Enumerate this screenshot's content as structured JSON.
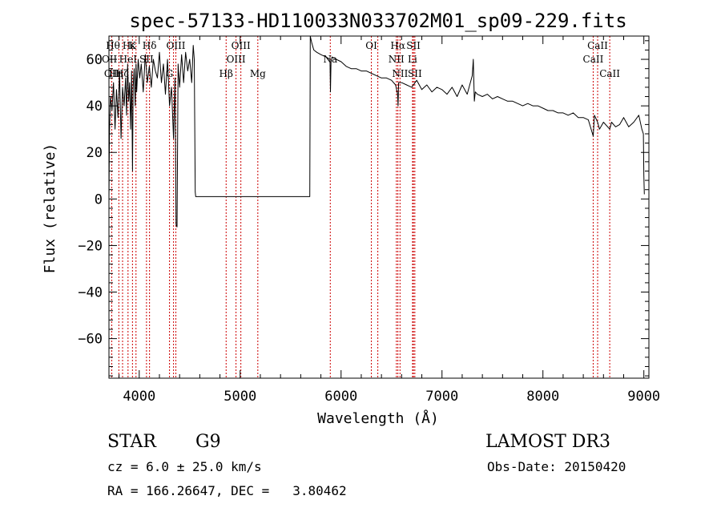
{
  "chart_data": {
    "type": "line",
    "title": "spec-57133-HD110033N033702M01_sp09-229.fits",
    "xlabel": "Wavelength (Å)",
    "ylabel": "Flux (relative)",
    "xlim": [
      3700,
      9050
    ],
    "ylim": [
      -77,
      70
    ],
    "x_ticks": [
      {
        "value": 4000,
        "label": "4000"
      },
      {
        "value": 5000,
        "label": "5000"
      },
      {
        "value": 6000,
        "label": "6000"
      },
      {
        "value": 7000,
        "label": "7000"
      },
      {
        "value": 8000,
        "label": "8000"
      },
      {
        "value": 9000,
        "label": "9000"
      }
    ],
    "y_ticks": [
      {
        "value": 60,
        "label": "60"
      },
      {
        "value": 40,
        "label": "40"
      },
      {
        "value": 20,
        "label": "20"
      },
      {
        "value": 0,
        "label": "0"
      },
      {
        "value": -20,
        "label": "−20"
      },
      {
        "value": -40,
        "label": "−40"
      },
      {
        "value": -60,
        "label": "−60"
      }
    ],
    "x_minor_step": 200,
    "y_minor_step": 4,
    "series": [
      {
        "name": "flux",
        "x": [
          3700,
          3705,
          3715,
          3730,
          3745,
          3760,
          3775,
          3790,
          3805,
          3820,
          3835,
          3850,
          3865,
          3875,
          3885,
          3895,
          3905,
          3915,
          3925,
          3933,
          3940,
          3950,
          3960,
          3968,
          3975,
          3990,
          4005,
          4020,
          4040,
          4060,
          4080,
          4100,
          4120,
          4140,
          4160,
          4180,
          4200,
          4220,
          4240,
          4260,
          4280,
          4300,
          4320,
          4340,
          4355,
          4365,
          4375,
          4385,
          4400,
          4420,
          4440,
          4460,
          4480,
          4500,
          4520,
          4535,
          4545,
          4555,
          4560,
          5680,
          5690,
          5695,
          5710,
          5730,
          5760,
          5800,
          5850,
          5890,
          5895,
          5900,
          5910,
          5950,
          6000,
          6050,
          6100,
          6150,
          6200,
          6250,
          6300,
          6350,
          6400,
          6450,
          6500,
          6540,
          6560,
          6565,
          6570,
          6600,
          6650,
          6700,
          6750,
          6800,
          6850,
          6900,
          6950,
          7000,
          7050,
          7100,
          7150,
          7200,
          7250,
          7300,
          7310,
          7320,
          7330,
          7350,
          7400,
          7450,
          7500,
          7550,
          7600,
          7650,
          7700,
          7750,
          7800,
          7850,
          7900,
          7950,
          8000,
          8050,
          8100,
          8150,
          8200,
          8250,
          8300,
          8350,
          8400,
          8450,
          8498,
          8510,
          8542,
          8560,
          8600,
          8662,
          8680,
          8720,
          8760,
          8800,
          8850,
          8900,
          8950,
          8980,
          8995,
          9000,
          9005
        ],
        "y": [
          0,
          28,
          44,
          38,
          50,
          30,
          47,
          35,
          55,
          26,
          48,
          40,
          52,
          36,
          58,
          42,
          50,
          30,
          55,
          12,
          48,
          56,
          40,
          58,
          46,
          60,
          52,
          58,
          46,
          62,
          50,
          57,
          48,
          60,
          55,
          52,
          63,
          50,
          58,
          45,
          60,
          40,
          48,
          26,
          52,
          -11,
          -12,
          58,
          48,
          62,
          50,
          63,
          55,
          60,
          50,
          66,
          60,
          3,
          1,
          1,
          1,
          70,
          67,
          64,
          63,
          62,
          61,
          60,
          46,
          59,
          61,
          60,
          59,
          57,
          56,
          56,
          55,
          55,
          54,
          53,
          52,
          52,
          51,
          49,
          45,
          40,
          50,
          50,
          49,
          48,
          51,
          47,
          49,
          46,
          48,
          47,
          45,
          48,
          44,
          49,
          45,
          53,
          60,
          42,
          46,
          45,
          44,
          45,
          43,
          44,
          43,
          42,
          42,
          41,
          40,
          41,
          40,
          40,
          39,
          38,
          38,
          37,
          37,
          36,
          37,
          35,
          35,
          34,
          27,
          36,
          33,
          30,
          33,
          30,
          33,
          31,
          32,
          35,
          31,
          33,
          36,
          30,
          28,
          10,
          2
        ]
      }
    ],
    "spectral_lines": [
      {
        "wavelength": 3728,
        "label": "OII",
        "row": 3
      },
      {
        "wavelength": 3798,
        "label": "",
        "row": 0
      },
      {
        "wavelength": 3835,
        "label": "",
        "row": 0
      },
      {
        "wavelength": 3889,
        "label": "HeI",
        "row": 2
      },
      {
        "wavelength": 3933,
        "label": "K",
        "row": 1
      },
      {
        "wavelength": 3968,
        "label": "",
        "row": 0
      },
      {
        "wavelength": 4072,
        "label": "SII",
        "row": 2
      },
      {
        "wavelength": 4102,
        "label": "Hδ",
        "row": 1
      },
      {
        "wavelength": 4300,
        "label": "G",
        "row": 3
      },
      {
        "wavelength": 4340,
        "label": "",
        "row": 0
      },
      {
        "wavelength": 4363,
        "label": "OIII",
        "row": 1
      },
      {
        "wavelength": 4861,
        "label": "Hβ",
        "row": 3
      },
      {
        "wavelength": 4959,
        "label": "OIII",
        "row": 2
      },
      {
        "wavelength": 5007,
        "label": "OIII",
        "row": 1
      },
      {
        "wavelength": 5175,
        "label": "Mg",
        "row": 3
      },
      {
        "wavelength": 5893,
        "label": "Na",
        "row": 2
      },
      {
        "wavelength": 6300,
        "label": "OI",
        "row": 1
      },
      {
        "wavelength": 6364,
        "label": "",
        "row": 0
      },
      {
        "wavelength": 6548,
        "label": "NII",
        "row": 2
      },
      {
        "wavelength": 6563,
        "label": "Hα",
        "row": 1
      },
      {
        "wavelength": 6584,
        "label": "NII",
        "row": 3
      },
      {
        "wavelength": 6708,
        "label": "Li",
        "row": 2
      },
      {
        "wavelength": 6717,
        "label": "SII",
        "row": 1
      },
      {
        "wavelength": 6731,
        "label": "SII",
        "row": 3
      },
      {
        "wavelength": 8498,
        "label": "CaII",
        "row": 2
      },
      {
        "wavelength": 8542,
        "label": "CaII",
        "row": 1
      },
      {
        "wavelength": 8662,
        "label": "CaII",
        "row": 3
      }
    ],
    "line_label_rows": [
      {
        "label": "Hθ",
        "x": 3740,
        "row": 1
      },
      {
        "label": "OII",
        "x": 3705,
        "row": 2
      },
      {
        "label": "Hε",
        "x": 3900,
        "row": 1
      },
      {
        "label": "Hη",
        "x": 3770,
        "row": 3
      },
      {
        "label": "Hζ",
        "x": 3830,
        "row": 3
      }
    ]
  },
  "info": {
    "object_class": "STAR",
    "subclass": "G9",
    "redshift_text": "cz = 6.0 ± 25.0 km/s",
    "coords_text": "RA = 166.26647, DEC =   3.80462",
    "survey": "LAMOST DR3",
    "obs_date": "Obs-Date: 20150420"
  },
  "colors": {
    "line_marker": "#cc0000",
    "spectrum": "#000000",
    "axes": "#000000"
  }
}
